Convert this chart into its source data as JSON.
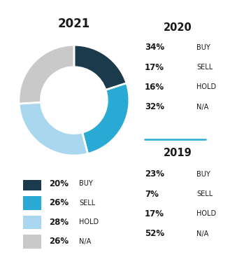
{
  "title_2021": "2021",
  "donut_values": [
    20,
    26,
    28,
    26
  ],
  "donut_colors": [
    "#1b3a4b",
    "#29aad4",
    "#aad7f0",
    "#c9c9c9"
  ],
  "legend_items": [
    {
      "pct": "20%",
      "label": "BUY",
      "color": "#1b3a4b"
    },
    {
      "pct": "26%",
      "label": "SELL",
      "color": "#29aad4"
    },
    {
      "pct": "28%",
      "label": "HOLD",
      "color": "#aad7f0"
    },
    {
      "pct": "26%",
      "label": "N/A",
      "color": "#c9c9c9"
    }
  ],
  "year2020_title": "2020",
  "year2020_data": [
    {
      "pct": "34%",
      "label": "BUY"
    },
    {
      "pct": "17%",
      "label": "SELL"
    },
    {
      "pct": "16%",
      "label": "HOLD"
    },
    {
      "pct": "32%",
      "label": "N/A"
    }
  ],
  "year2019_title": "2019",
  "year2019_data": [
    {
      "pct": "23%",
      "label": "BUY"
    },
    {
      "pct": "7%",
      "label": "SELL"
    },
    {
      "pct": "17%",
      "label": "HOLD"
    },
    {
      "pct": "52%",
      "label": "N/A"
    }
  ],
  "divider_color": "#29aad4",
  "bg_color": "#ffffff",
  "text_color": "#1a1a1a"
}
